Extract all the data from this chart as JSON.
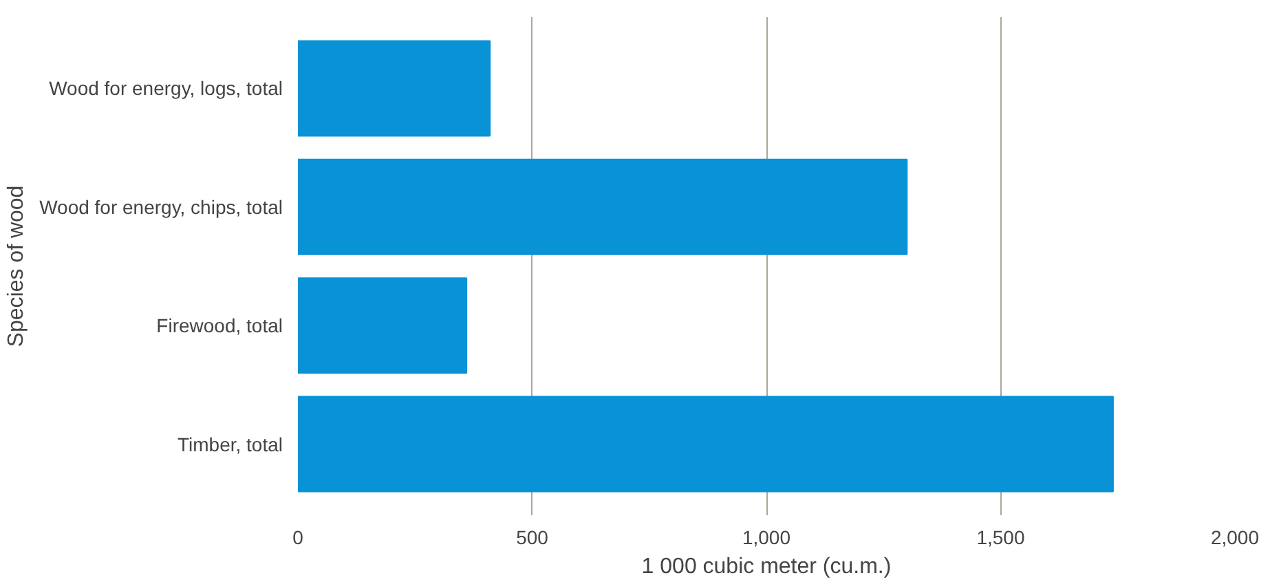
{
  "chart_data": {
    "type": "bar",
    "orientation": "horizontal",
    "xlabel": "1 000 cubic meter (cu.m.)",
    "ylabel": "Species of wood",
    "categories": [
      "Wood for energy, logs, total",
      "Wood for energy, chips, total",
      "Firewood, total",
      "Timber, total"
    ],
    "values": [
      410,
      1300,
      360,
      1740
    ],
    "color": "#0992d6",
    "xlim": [
      0,
      2000
    ],
    "xticks": [
      0,
      {
        "value": 500,
        "label": "500"
      },
      {
        "value": 1000,
        "label": "1,000"
      },
      {
        "value": 1500,
        "label": "1,500"
      },
      {
        "value": 2000,
        "label": "2,000"
      }
    ],
    "grid": "x"
  }
}
